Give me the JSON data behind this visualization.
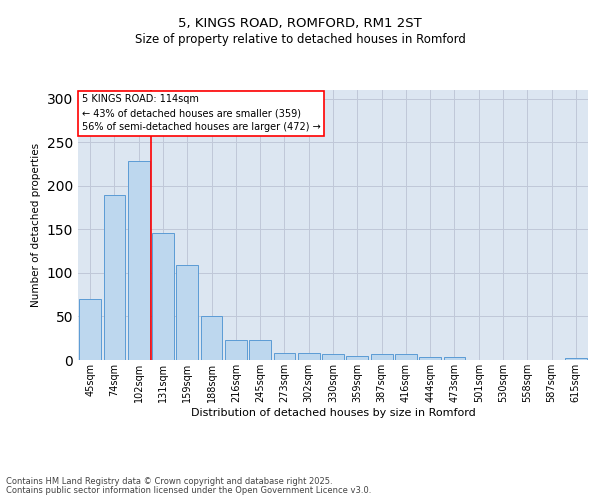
{
  "title1": "5, KINGS ROAD, ROMFORD, RM1 2ST",
  "title2": "Size of property relative to detached houses in Romford",
  "xlabel": "Distribution of detached houses by size in Romford",
  "ylabel": "Number of detached properties",
  "categories": [
    "45sqm",
    "74sqm",
    "102sqm",
    "131sqm",
    "159sqm",
    "188sqm",
    "216sqm",
    "245sqm",
    "273sqm",
    "302sqm",
    "330sqm",
    "359sqm",
    "387sqm",
    "416sqm",
    "444sqm",
    "473sqm",
    "501sqm",
    "530sqm",
    "558sqm",
    "587sqm",
    "615sqm"
  ],
  "values": [
    70,
    190,
    228,
    146,
    109,
    50,
    23,
    23,
    8,
    8,
    7,
    5,
    7,
    7,
    3,
    4,
    0,
    0,
    0,
    0,
    2
  ],
  "bar_color": "#bdd7ee",
  "bar_edge_color": "#5b9bd5",
  "grid_color": "#c0c8d8",
  "bg_color": "#dce6f1",
  "annotation_box_text": "5 KINGS ROAD: 114sqm\n← 43% of detached houses are smaller (359)\n56% of semi-detached houses are larger (472) →",
  "red_line_x": 2.5,
  "ylim": [
    0,
    310
  ],
  "yticks": [
    0,
    50,
    100,
    150,
    200,
    250,
    300
  ],
  "footer1": "Contains HM Land Registry data © Crown copyright and database right 2025.",
  "footer2": "Contains public sector information licensed under the Open Government Licence v3.0."
}
